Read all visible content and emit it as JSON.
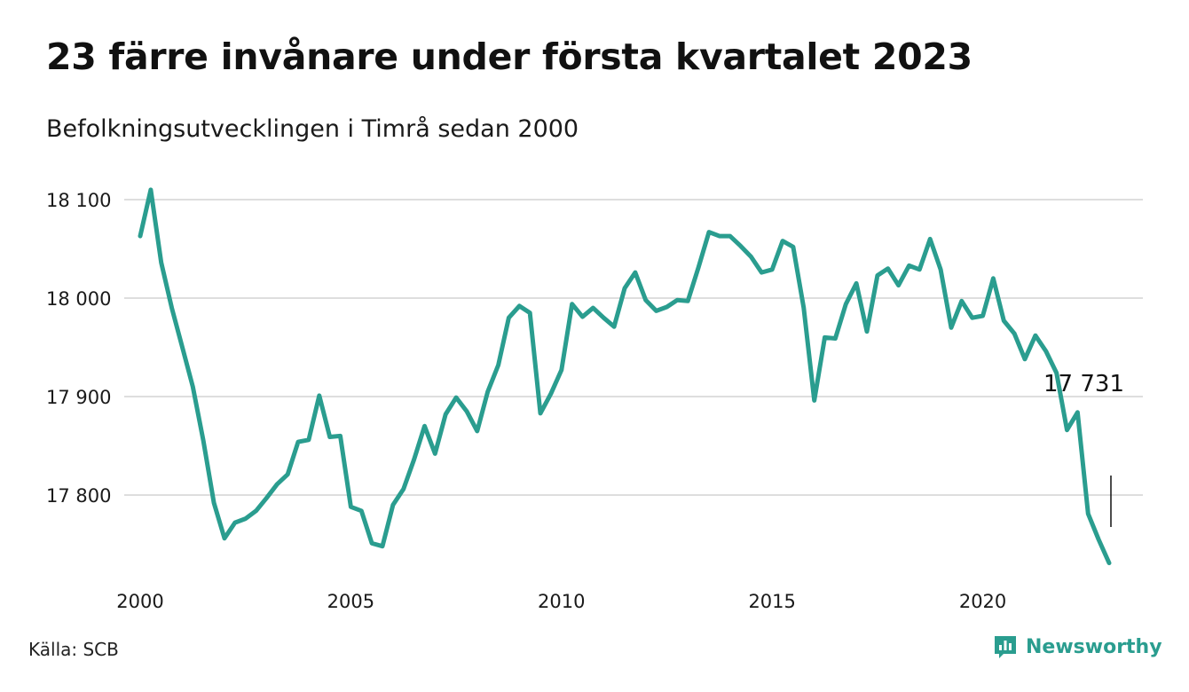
{
  "title": "23 färre invånare under första kvartalet 2023",
  "subtitle": "Befolkningsutvecklingen i Timrå sedan 2000",
  "source": "Källa: SCB",
  "brand": {
    "name": "Newsworthy",
    "icon": "bar-chart-bubble-icon"
  },
  "colors": {
    "line": "#2a9d8f",
    "grid": "#dedede",
    "text": "#1a1a1a",
    "brand": "#2a9d8f"
  },
  "chart_data": {
    "type": "line",
    "title": "23 färre invånare under första kvartalet 2023",
    "xlabel": "",
    "ylabel": "",
    "xlim": [
      2000,
      2023.5
    ],
    "ylim": [
      17720,
      18120
    ],
    "grid": true,
    "x_ticks": [
      2000,
      2005,
      2010,
      2015,
      2020
    ],
    "y_ticks": [
      17800,
      17900,
      18000,
      18100
    ],
    "y_tick_labels": [
      "17 800",
      "17 900",
      "18 000",
      "18 100"
    ],
    "annotation": {
      "text": "17 731",
      "x": 2023.0,
      "y": 17731
    },
    "series": [
      {
        "x": [
          2000.0,
          2000.25,
          2000.5,
          2000.75,
          2001.0,
          2001.25,
          2001.5,
          2001.75,
          2002.0,
          2002.25,
          2002.5,
          2002.75,
          2003.0,
          2003.25,
          2003.5,
          2003.75,
          2004.0,
          2004.25,
          2004.5,
          2004.75,
          2005.0,
          2005.25,
          2005.5,
          2005.75,
          2006.0,
          2006.25,
          2006.5,
          2006.75,
          2007.0,
          2007.25,
          2007.5,
          2007.75,
          2008.0,
          2008.25,
          2008.5,
          2008.75,
          2009.0,
          2009.25,
          2009.5,
          2009.75,
          2010.0,
          2010.25,
          2010.5,
          2010.75,
          2011.0,
          2011.25,
          2011.5,
          2011.75,
          2012.0,
          2012.25,
          2012.5,
          2012.75,
          2013.0,
          2013.25,
          2013.5,
          2013.75,
          2014.0,
          2014.25,
          2014.5,
          2014.75,
          2015.0,
          2015.25,
          2015.5,
          2015.75,
          2016.0,
          2016.25,
          2016.5,
          2016.75,
          2017.0,
          2017.25,
          2017.5,
          2017.75,
          2018.0,
          2018.25,
          2018.5,
          2018.75,
          2019.0,
          2019.25,
          2019.5,
          2019.75,
          2020.0,
          2020.25,
          2020.5,
          2020.75,
          2021.0,
          2021.25,
          2021.5,
          2021.75,
          2022.0,
          2022.25,
          2022.5,
          2022.75,
          2023.0
        ],
        "values": [
          18063,
          18110,
          18036,
          17990,
          17950,
          17910,
          17855,
          17792,
          17756,
          17772,
          17776,
          17784,
          17797,
          17811,
          17821,
          17854,
          17856,
          17901,
          17859,
          17860,
          17788,
          17784,
          17751,
          17748,
          17790,
          17806,
          17836,
          17870,
          17842,
          17882,
          17899,
          17885,
          17865,
          17905,
          17932,
          17980,
          17992,
          17985,
          17883,
          17903,
          17927,
          17994,
          17981,
          17990,
          17980,
          17971,
          18010,
          18026,
          17998,
          17987,
          17991,
          17998,
          17997,
          18031,
          18067,
          18063,
          18063,
          18053,
          18042,
          18026,
          18029,
          18058,
          18052,
          17990,
          17896,
          17960,
          17959,
          17994,
          18015,
          17966,
          18023,
          18030,
          18013,
          18033,
          18029,
          18060,
          18029,
          17970,
          17997,
          17980,
          17982,
          18020,
          17977,
          17964,
          17938,
          17962,
          17946,
          17924,
          17866,
          17884,
          17781,
          17755,
          17731
        ]
      }
    ]
  }
}
